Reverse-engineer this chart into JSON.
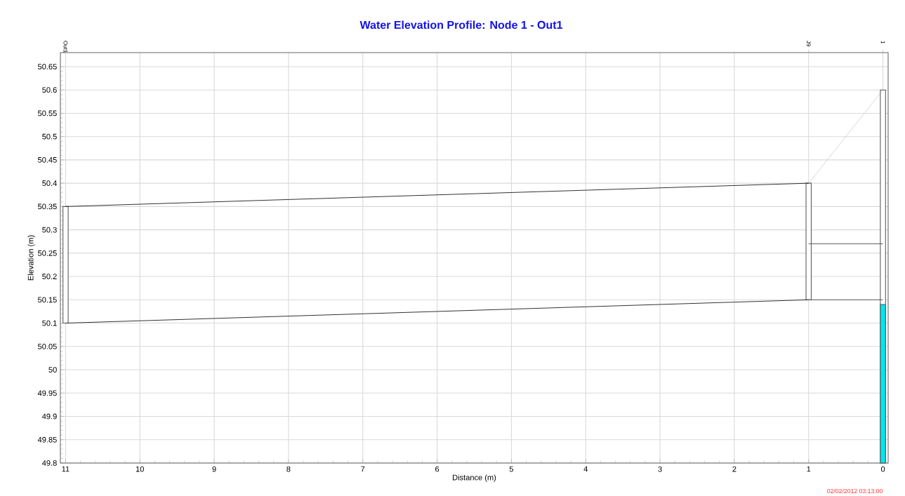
{
  "chart_data": {
    "type": "line",
    "title": "Water Elevation Profile:  Node 1 - Out1",
    "xlabel": "Distance (m)",
    "ylabel": "Elevation (m)",
    "xlim": [
      11.07,
      -0.07
    ],
    "xticks": [
      11,
      10,
      9,
      8,
      7,
      6,
      5,
      4,
      3,
      2,
      1,
      0
    ],
    "ylim": [
      49.8,
      50.68
    ],
    "yticks": [
      49.8,
      49.85,
      49.9,
      49.95,
      50,
      50.05,
      50.1,
      50.15,
      50.2,
      50.25,
      50.3,
      50.35,
      50.4,
      50.45,
      50.5,
      50.55,
      50.6,
      50.65
    ],
    "grid": true,
    "marker": "none",
    "series": [
      {
        "type": "bar",
        "color": "#ffffff",
        "x": [
          11,
          1,
          0
        ],
        "base": [
          50.1,
          50.15,
          49.8
        ],
        "values": [
          0.25,
          0.25,
          0.8
        ]
      },
      {
        "type": "bar",
        "color": "#00e5ee",
        "x": [
          0
        ],
        "base": [
          49.8
        ],
        "values": [
          0.34
        ]
      },
      {
        "color": "#222222",
        "line_style": "solid",
        "x": [
          11,
          1
        ],
        "values": [
          50.35,
          50.4
        ]
      },
      {
        "color": "#222222",
        "line_style": "solid",
        "x": [
          11,
          1
        ],
        "values": [
          50.1,
          50.15
        ]
      },
      {
        "color": "#555555",
        "line_style": "solid",
        "x": [
          1,
          0
        ],
        "values": [
          50.27,
          50.27
        ]
      },
      {
        "color": "#555555",
        "line_style": "solid",
        "x": [
          1,
          0
        ],
        "values": [
          50.15,
          50.15
        ]
      },
      {
        "color": "#999999",
        "line_style": "dotted",
        "x": [
          1,
          0
        ],
        "values": [
          50.4,
          50.6
        ]
      }
    ],
    "annotations": [
      "02/02/2012 03:13:00",
      "Out1",
      "J9",
      "1"
    ]
  }
}
